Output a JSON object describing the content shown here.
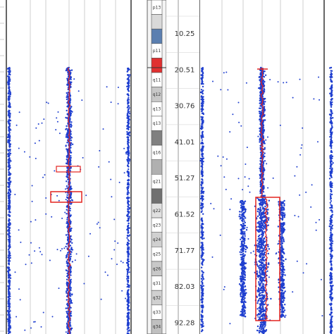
{
  "chart_data": [
    {
      "type": "scatter",
      "panel": "left-sample",
      "description_free": true,
      "scale_labels": [
        "10.25",
        "20.51",
        "30.76",
        "41.01",
        "51.27",
        "61.52",
        "71.77",
        "82.03",
        "92.28"
      ],
      "tracks": [
        {
          "name": "",
          "color": "#1f3fcf",
          "x_band": [
            9,
            20
          ],
          "data_range": [
            96,
            474
          ]
        },
        {
          "name": "",
          "color": "#1f3fcf",
          "x_band": [
            87,
            110
          ],
          "data_range": [
            96,
            474
          ],
          "overlay": "#e3231f"
        },
        {
          "name": "",
          "color": "#1f3fcf",
          "x_band": [
            176,
            186
          ],
          "data_range": [
            96,
            474
          ]
        }
      ],
      "segments": [
        {
          "label": "",
          "y_range": [
            236,
            244
          ]
        },
        {
          "label": "",
          "y_range": [
            272,
            287
          ]
        }
      ]
    },
    {
      "type": "scatter",
      "panel": "right-sample",
      "tracks": [
        {
          "name": "",
          "color": "#1f3fcf",
          "x_band": [
            283,
            293
          ]
        },
        {
          "name": "",
          "color": "#1f3fcf",
          "x_band": [
            360,
            385
          ],
          "overlay": "#e3231f"
        },
        {
          "name": "",
          "color": "#1f3fcf",
          "x_band": [
            460,
            474
          ]
        }
      ],
      "segments": [
        {
          "label": "",
          "y_range": [
            280,
            455
          ]
        }
      ]
    }
  ],
  "ideogram": {
    "bands": [
      {
        "label": "p13",
        "shade": "#ffffff"
      },
      {
        "label": "",
        "shade": "#d9d9d9"
      },
      {
        "label": "",
        "shade": "#5b7fb0"
      },
      {
        "label": "p11",
        "shade": "#ffffff"
      },
      {
        "label": "",
        "shade": "#e03030"
      },
      {
        "label": "q11",
        "shade": "#ffffff"
      },
      {
        "label": "q12",
        "shade": "#c8c8c8"
      },
      {
        "label": "q13",
        "shade": "#ffffff"
      },
      {
        "label": "q13",
        "shade": "#ffffff"
      },
      {
        "label": "",
        "shade": "#808080"
      },
      {
        "label": "q16",
        "shade": "#ffffff"
      },
      {
        "label": "",
        "shade": "#b0b0b0"
      },
      {
        "label": "q21",
        "shade": "#ffffff"
      },
      {
        "label": "",
        "shade": "#707070"
      },
      {
        "label": "q22",
        "shade": "#e0e0e0"
      },
      {
        "label": "q23",
        "shade": "#ffffff"
      },
      {
        "label": "q24",
        "shade": "#d0d0d0"
      },
      {
        "label": "q25",
        "shade": "#ffffff"
      },
      {
        "label": "q26",
        "shade": "#c8c8c8"
      },
      {
        "label": "q31",
        "shade": "#ffffff"
      },
      {
        "label": "q32",
        "shade": "#d0d0d0"
      },
      {
        "label": "q33",
        "shade": "#ffffff"
      },
      {
        "label": "q34",
        "shade": "#c0c0c0"
      }
    ],
    "positions": [
      "10.25",
      "20.51",
      "30.76",
      "41.01",
      "51.27",
      "61.52",
      "71.77",
      "82.03",
      "92.28"
    ]
  },
  "colors": {
    "probe": "#1f3fcf",
    "segment": "#e3231f",
    "panel_border": "#333333",
    "grid": "#cfcfcf",
    "background": "#ffffff"
  }
}
